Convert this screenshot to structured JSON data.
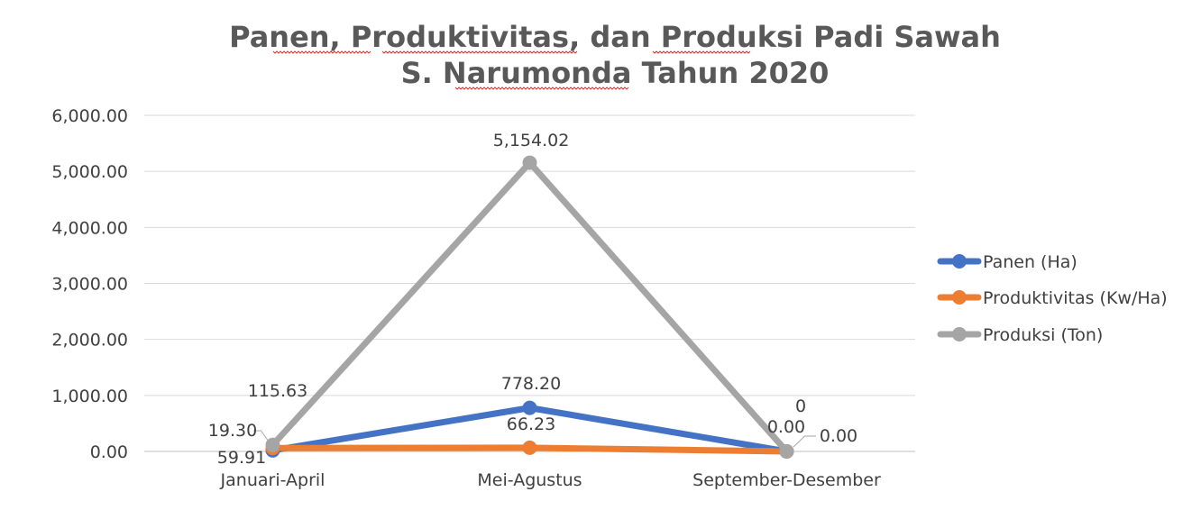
{
  "chart_data": {
    "type": "line",
    "title": [
      "Panen, Produktivitas, dan Produksi Padi Sawah",
      "S. Narumonda Tahun 2020"
    ],
    "categories": [
      "Januari-April",
      "Mei-Agustus",
      "September-Desember"
    ],
    "ylim": [
      0,
      6000
    ],
    "yticks": [
      "0.00",
      "1,000.00",
      "2,000.00",
      "3,000.00",
      "4,000.00",
      "5,000.00",
      "6,000.00"
    ],
    "grid": true,
    "legend": "right",
    "series": [
      {
        "name": "Panen (Ha)",
        "color": "#4472c4",
        "values": [
          19.3,
          778.2,
          0
        ],
        "labels": [
          "19.30",
          "778.20",
          "0.00"
        ]
      },
      {
        "name": "Produktivitas (Kw/Ha)",
        "color": "#ed7d31",
        "values": [
          59.91,
          66.23,
          0
        ],
        "labels": [
          "59.91",
          "66.23",
          "0"
        ]
      },
      {
        "name": "Produksi (Ton)",
        "color": "#a5a5a5",
        "values": [
          115.63,
          5154.02,
          0
        ],
        "labels": [
          "115.63",
          "5,154.02",
          "0.00"
        ]
      }
    ]
  }
}
